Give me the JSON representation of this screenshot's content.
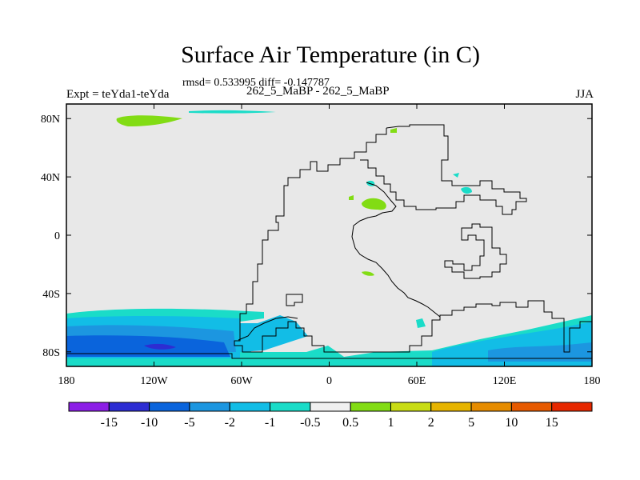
{
  "title": "Surface Air Temperature (in C)",
  "stats": "rmsd= 0.533995 diff= -0.147787",
  "expt_label": "Expt = teYda1-teYda",
  "center_label": "262_5_MaBP - 262_5_MaBP",
  "season": "JJA",
  "map": {
    "lon_range": [
      -180,
      180
    ],
    "lat_range": [
      -90,
      90
    ],
    "background_color": "#e8e8e8",
    "x_ticks": [
      {
        "value": -180,
        "label": "180"
      },
      {
        "value": -120,
        "label": "120W"
      },
      {
        "value": -60,
        "label": "60W"
      },
      {
        "value": 0,
        "label": "0"
      },
      {
        "value": 60,
        "label": "60E"
      },
      {
        "value": 120,
        "label": "120E"
      },
      {
        "value": 180,
        "label": "180"
      }
    ],
    "y_ticks": [
      {
        "value": 80,
        "label": "80N"
      },
      {
        "value": 40,
        "label": "40N"
      },
      {
        "value": 0,
        "label": "0"
      },
      {
        "value": -40,
        "label": "40S"
      },
      {
        "value": -80,
        "label": "80S"
      }
    ]
  },
  "colorbar": {
    "colors": [
      "#8c1ee6",
      "#2d2dd2",
      "#0a64dc",
      "#1c96e0",
      "#12bde6",
      "#1adcc8",
      "#f0f0f0",
      "#82dc14",
      "#c8dc14",
      "#e6b400",
      "#e68c00",
      "#e65a00",
      "#e62800"
    ],
    "labels": [
      "-15",
      "-10",
      "-5",
      "-2",
      "-1",
      "-0.5",
      "0.5",
      "1",
      "2",
      "5",
      "10",
      "15"
    ]
  }
}
